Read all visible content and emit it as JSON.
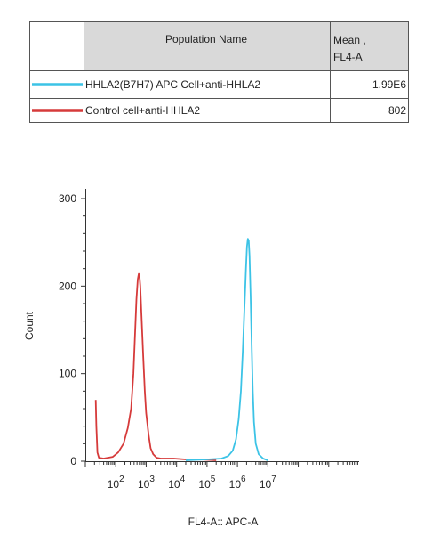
{
  "legend_table": {
    "header": {
      "population": "Population Name",
      "mean_line1": "Mean ,",
      "mean_line2": "FL4-A"
    },
    "rows": [
      {
        "color": "#3cc3e6",
        "name": "HHLA2(B7H7) APC Cell+anti-HHLA2",
        "mean": "1.99E6"
      },
      {
        "color": "#d63a3a",
        "name": "Control cell+anti-HHLA2",
        "mean": "802"
      }
    ]
  },
  "chart_data": {
    "type": "line",
    "xlabel": "FL4-A:: APC-A",
    "ylabel": "Count",
    "x_scale": "log",
    "xlim": [
      10,
      10000000000
    ],
    "ylim": [
      0,
      300
    ],
    "y_ticks": [
      0,
      100,
      200,
      300
    ],
    "x_ticks": [
      {
        "value": 100,
        "base": "10",
        "exp": "2"
      },
      {
        "value": 1000,
        "base": "10",
        "exp": "3"
      },
      {
        "value": 10000,
        "base": "10",
        "exp": "4"
      },
      {
        "value": 100000,
        "base": "10",
        "exp": "5"
      },
      {
        "value": 1000000,
        "base": "10",
        "exp": "6"
      },
      {
        "value": 10000000,
        "base": "10",
        "exp": "7"
      }
    ],
    "series": [
      {
        "name": "Control cell+anti-HHLA2",
        "color": "#d63a3a",
        "points": [
          [
            22,
            70
          ],
          [
            23,
            40
          ],
          [
            25,
            10
          ],
          [
            28,
            4
          ],
          [
            40,
            3
          ],
          [
            80,
            5
          ],
          [
            120,
            10
          ],
          [
            180,
            20
          ],
          [
            250,
            38
          ],
          [
            320,
            60
          ],
          [
            380,
            100
          ],
          [
            430,
            145
          ],
          [
            480,
            185
          ],
          [
            530,
            208
          ],
          [
            570,
            214
          ],
          [
            600,
            212
          ],
          [
            640,
            200
          ],
          [
            700,
            168
          ],
          [
            800,
            120
          ],
          [
            900,
            80
          ],
          [
            1000,
            55
          ],
          [
            1200,
            30
          ],
          [
            1400,
            15
          ],
          [
            1700,
            8
          ],
          [
            2200,
            4
          ],
          [
            3000,
            3
          ],
          [
            8000,
            3
          ],
          [
            20000,
            2
          ],
          [
            60000,
            2
          ],
          [
            200000,
            1
          ]
        ]
      },
      {
        "name": "HHLA2(B7H7) APC Cell+anti-HHLA2",
        "color": "#3cc3e6",
        "points": [
          [
            20000,
            1
          ],
          [
            100000,
            2
          ],
          [
            300000,
            3
          ],
          [
            500000,
            6
          ],
          [
            700000,
            12
          ],
          [
            900000,
            25
          ],
          [
            1100000,
            48
          ],
          [
            1300000,
            80
          ],
          [
            1500000,
            125
          ],
          [
            1700000,
            175
          ],
          [
            1900000,
            220
          ],
          [
            2050000,
            245
          ],
          [
            2200000,
            254
          ],
          [
            2350000,
            252
          ],
          [
            2500000,
            235
          ],
          [
            2700000,
            190
          ],
          [
            2950000,
            130
          ],
          [
            3200000,
            80
          ],
          [
            3500000,
            45
          ],
          [
            4000000,
            20
          ],
          [
            5000000,
            8
          ],
          [
            7000000,
            3
          ],
          [
            10000000,
            1
          ]
        ]
      }
    ]
  }
}
